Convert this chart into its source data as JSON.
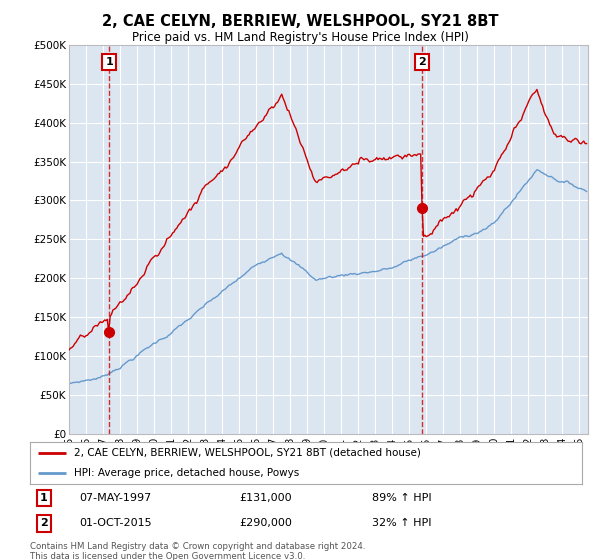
{
  "title": "2, CAE CELYN, BERRIEW, WELSHPOOL, SY21 8BT",
  "subtitle": "Price paid vs. HM Land Registry's House Price Index (HPI)",
  "ylim": [
    0,
    500000
  ],
  "yticks": [
    0,
    50000,
    100000,
    150000,
    200000,
    250000,
    300000,
    350000,
    400000,
    450000,
    500000
  ],
  "ytick_labels": [
    "£0",
    "£50K",
    "£100K",
    "£150K",
    "£200K",
    "£250K",
    "£300K",
    "£350K",
    "£400K",
    "£450K",
    "£500K"
  ],
  "plot_bg_color": "#dce6f1",
  "grid_color": "#ffffff",
  "sale1_date": "07-MAY-1997",
  "sale1_price": 131000,
  "sale1_t": 1997.37,
  "sale2_date": "01-OCT-2015",
  "sale2_price": 290000,
  "sale2_t": 2015.75,
  "legend_red": "2, CAE CELYN, BERRIEW, WELSHPOOL, SY21 8BT (detached house)",
  "legend_blue": "HPI: Average price, detached house, Powys",
  "footer": "Contains HM Land Registry data © Crown copyright and database right 2024.\nThis data is licensed under the Open Government Licence v3.0.",
  "red_color": "#cc0000",
  "blue_color": "#6699cc",
  "box_color": "#cc0000",
  "sale1_hpi": "89% ↑ HPI",
  "sale2_hpi": "32% ↑ HPI"
}
